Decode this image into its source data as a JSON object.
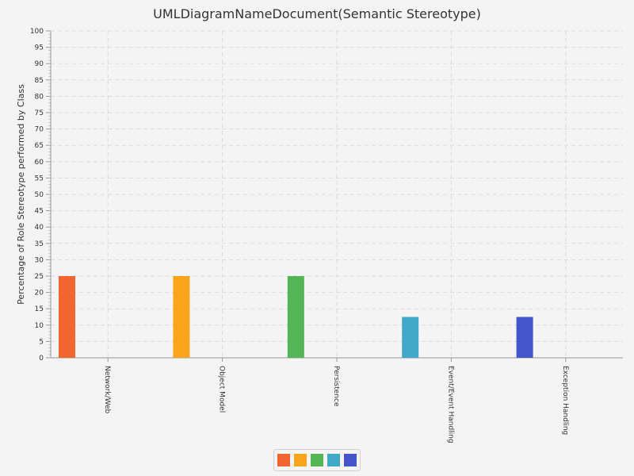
{
  "chart_data": {
    "type": "bar",
    "title": "UMLDiagramNameDocument(Semantic Stereotype)",
    "xlabel": "",
    "ylabel": "Percentage of Role Stereotype performed by Class",
    "ylim": [
      0,
      100
    ],
    "ytick_step": 5,
    "grid": true,
    "legend_position": "bottom",
    "categories": [
      "Network/Web",
      "Object Model",
      "Persistence",
      "Event/Event Handling",
      "Exception Handling"
    ],
    "values": [
      25,
      25,
      25,
      12.5,
      12.5
    ],
    "colors": [
      "#f26430",
      "#f8a51c",
      "#55b456",
      "#41a8c7",
      "#4355c8"
    ]
  }
}
